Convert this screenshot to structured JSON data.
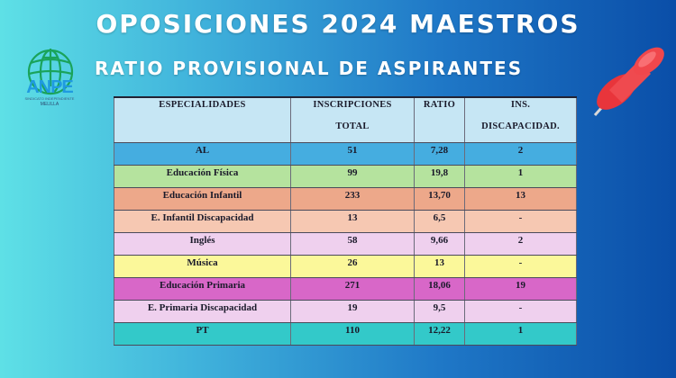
{
  "header": {
    "title": "OPOSICIONES 2024 MAESTROS",
    "subtitle": "RATIO PROVISIONAL DE ASPIRANTES"
  },
  "logo": {
    "icon": "globe-cross-icon",
    "text": "ANPE",
    "tagline": "SINDICATO INDEPENDIENTE",
    "city": "MELILLA",
    "color": "#1f9ae0",
    "globe_color": "#1aa35a"
  },
  "decoration": {
    "icon": "pushpin-icon",
    "color": "#e8353b"
  },
  "table": {
    "headers": {
      "especialidades": "ESPECIALIDADES",
      "inscripciones_l1": "INSCRIPCIONES",
      "inscripciones_l2": "TOTAL",
      "ratio": "RATIO",
      "discapacidad_l1": "INS.",
      "discapacidad_l2": "DISCAPACIDAD."
    },
    "rows": [
      {
        "especialidad": "AL",
        "inscripciones": "51",
        "ratio": "7,28",
        "discapacidad": "2",
        "color": "#45ade0"
      },
      {
        "especialidad": "Educación Física",
        "inscripciones": "99",
        "ratio": "19,8",
        "discapacidad": "1",
        "color": "#b5e39e"
      },
      {
        "especialidad": "Educación Infantil",
        "inscripciones": "233",
        "ratio": "13,70",
        "discapacidad": "13",
        "color": "#eda88a"
      },
      {
        "especialidad": "E. Infantil Discapacidad",
        "inscripciones": "13",
        "ratio": "6,5",
        "discapacidad": "-",
        "color": "#f6c8b2"
      },
      {
        "especialidad": "Inglés",
        "inscripciones": "58",
        "ratio": "9,66",
        "discapacidad": "2",
        "color": "#efd0ee"
      },
      {
        "especialidad": "Música",
        "inscripciones": "26",
        "ratio": "13",
        "discapacidad": "-",
        "color": "#fbf89a"
      },
      {
        "especialidad": "Educación Primaria",
        "inscripciones": "271",
        "ratio": "18,06",
        "discapacidad": "19",
        "color": "#d867c8"
      },
      {
        "especialidad": "E. Primaria Discapacidad",
        "inscripciones": "19",
        "ratio": "9,5",
        "discapacidad": "-",
        "color": "#efd0ee"
      },
      {
        "especialidad": "PT",
        "inscripciones": "110",
        "ratio": "12,22",
        "discapacidad": "1",
        "color": "#33c9c9"
      }
    ]
  }
}
